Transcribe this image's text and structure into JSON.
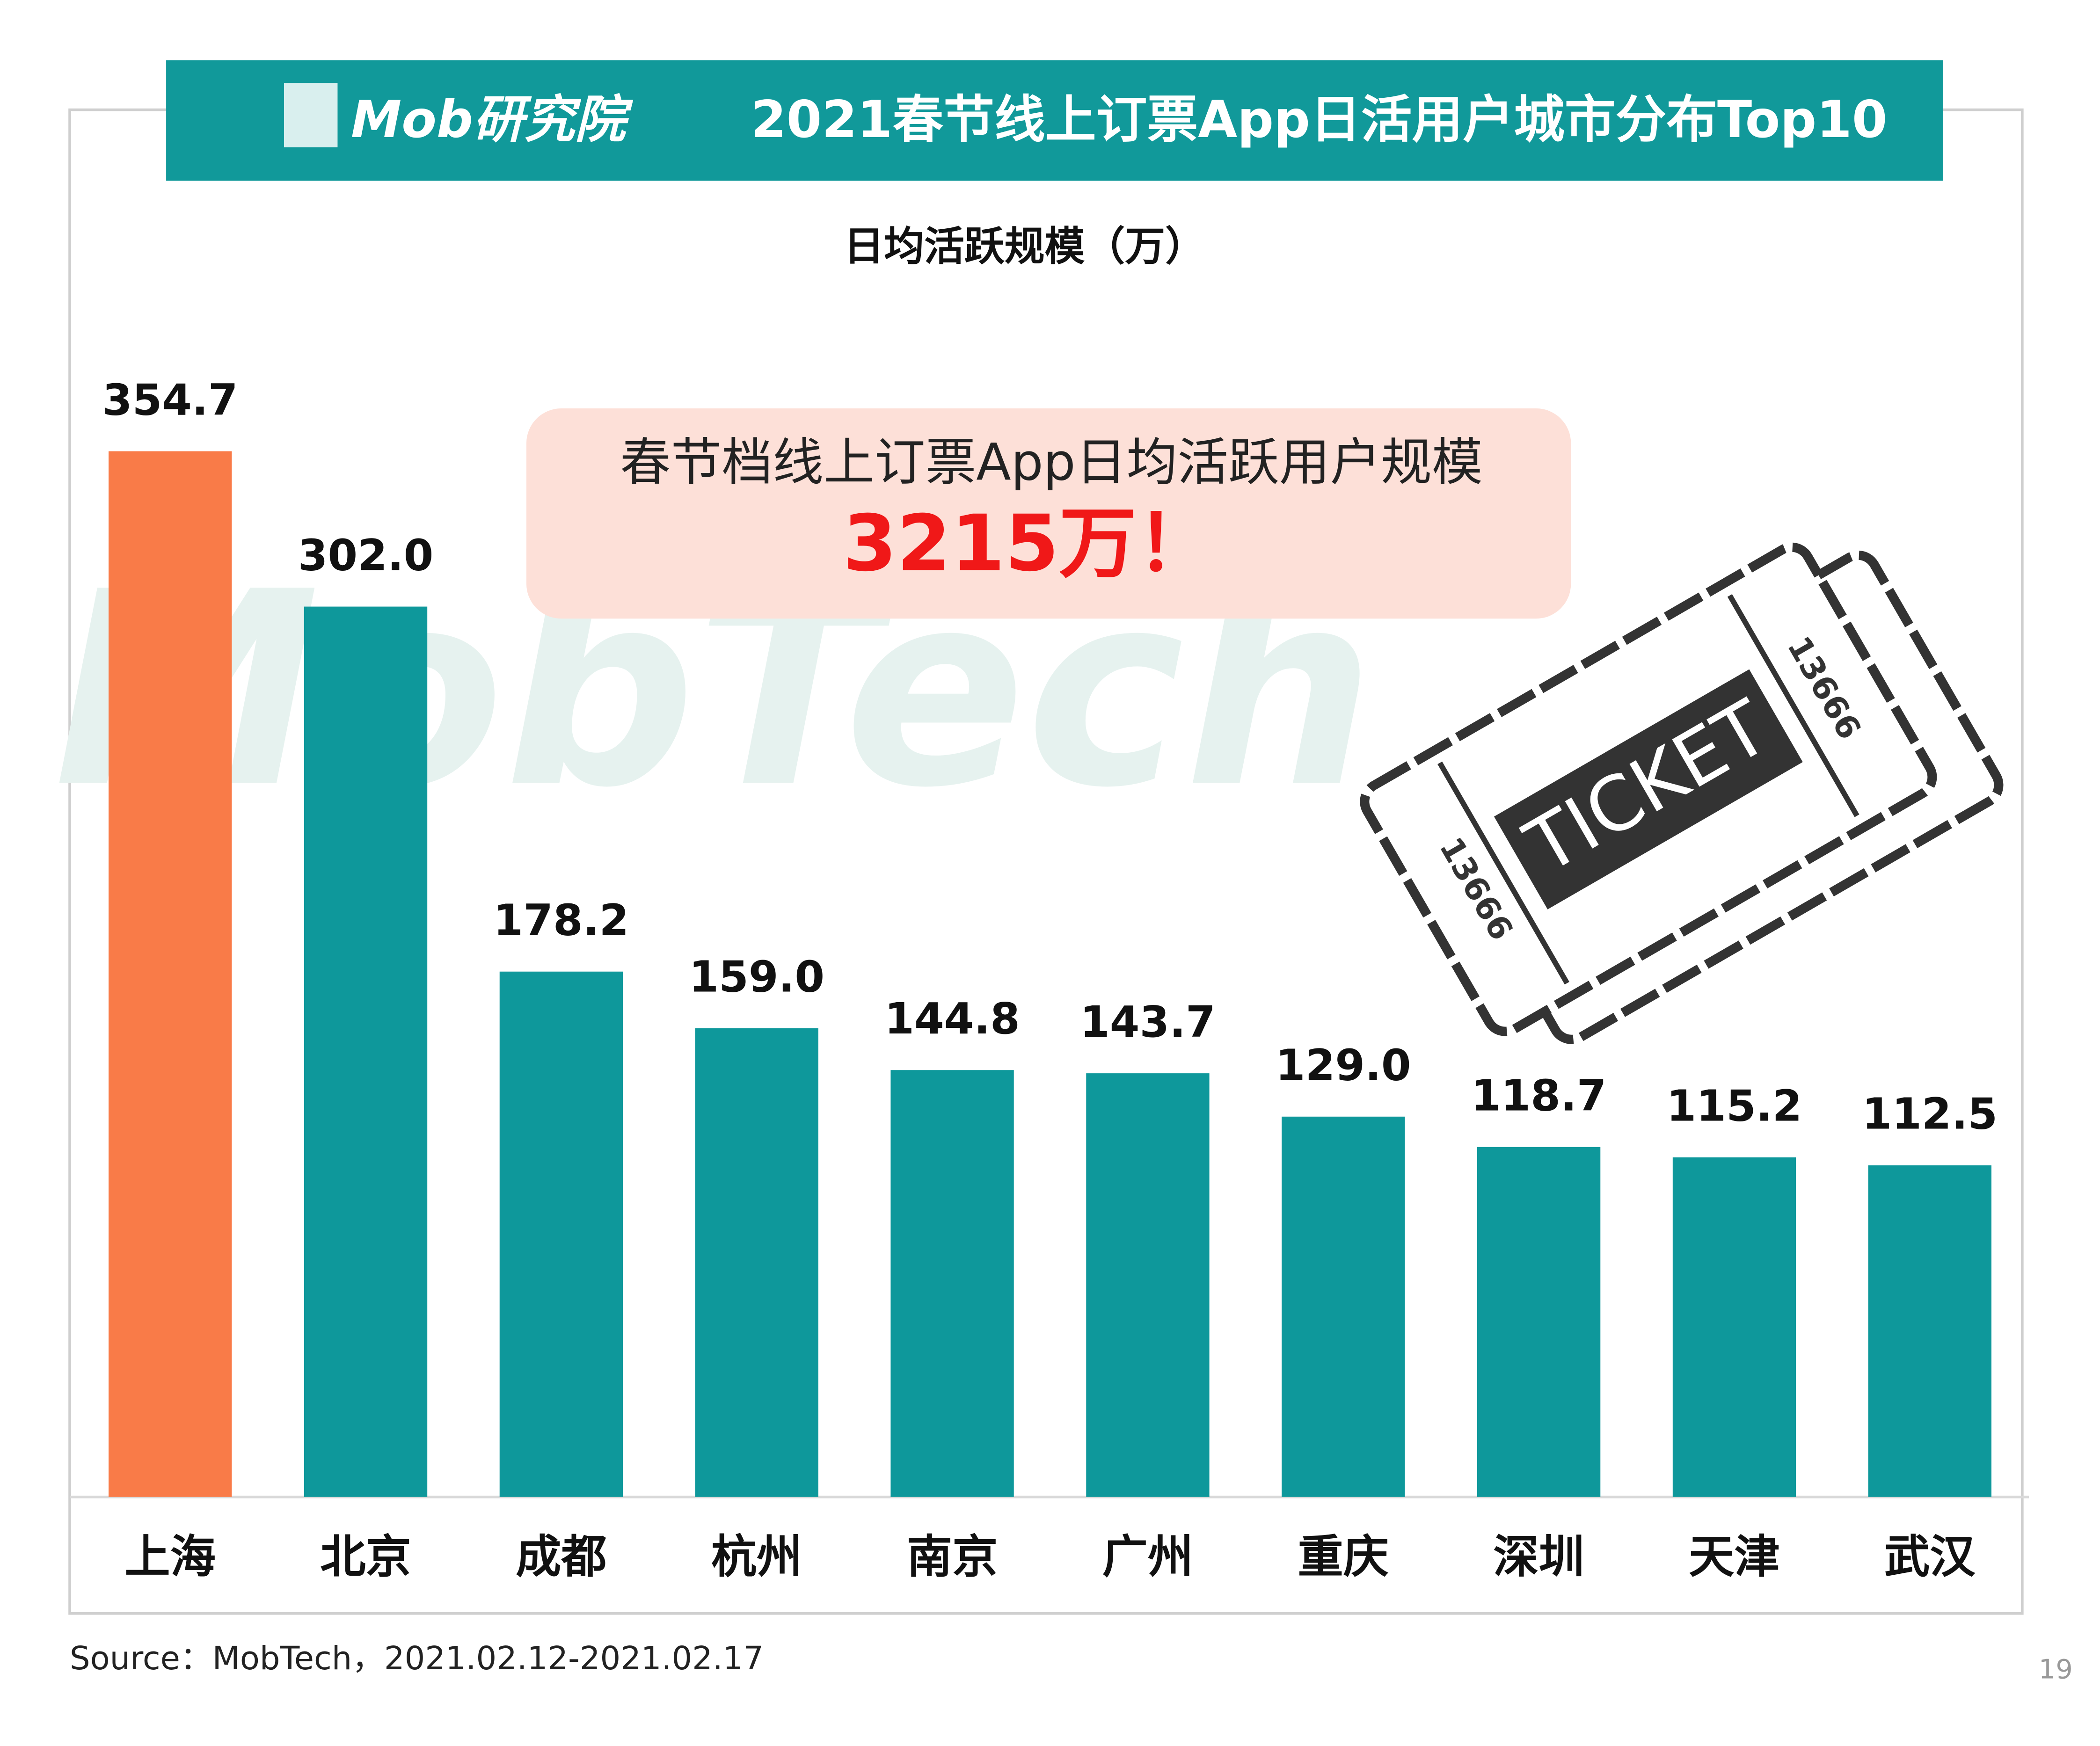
{
  "logo": "Mob研究院",
  "watermark": "MobTech",
  "callout": {
    "text": "春节档线上订票App日均活跃用户规模",
    "highlight": "3215万！"
  },
  "ticket": {
    "label": "TICKET",
    "numbers": [
      "13666",
      "13666"
    ]
  },
  "source": "Source：MobTech，2021.02.12-2021.02.17",
  "page_number": "19",
  "chart_data": {
    "type": "bar",
    "title": "2021春节线上订票App日活用户城市分布Top10",
    "subtitle": "日均活跃规模（万）",
    "categories": [
      "上海",
      "北京",
      "成都",
      "杭州",
      "南京",
      "广州",
      "重庆",
      "深圳",
      "天津",
      "武汉"
    ],
    "values": [
      354.7,
      302.0,
      178.2,
      159.0,
      144.8,
      143.7,
      129.0,
      118.7,
      115.2,
      112.5
    ],
    "value_labels": [
      "354.7",
      "302.0",
      "178.2",
      "159.0",
      "144.8",
      "143.7",
      "129.0",
      "118.7",
      "115.2",
      "112.5"
    ],
    "colors": [
      "#f97b48",
      "#0e989b",
      "#0e989b",
      "#0e989b",
      "#0e989b",
      "#0e989b",
      "#0e989b",
      "#0e989b",
      "#0e989b",
      "#0e989b"
    ]
  }
}
